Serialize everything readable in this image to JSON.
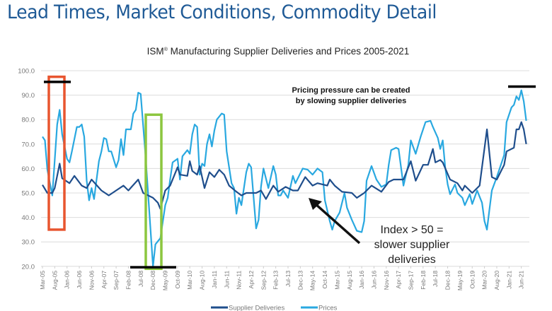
{
  "header": {
    "title": "Lead Times, Market Conditions, Commodity Detail"
  },
  "chart_data": {
    "type": "line",
    "title": "ISM® Manufacturing Supplier Deliveries and Prices 2005-2021",
    "title_main": "ISM",
    "title_sup": "®",
    "title_rest": " Manufacturing Supplier Deliveries and Prices 2005-2021",
    "xlabel": "",
    "ylabel": "",
    "ylim": [
      20,
      100
    ],
    "y_ticks": [
      "100.0",
      "90.0",
      "80.0",
      "70.0",
      "60.0",
      "50.0",
      "40.0",
      "30.0",
      "20.0"
    ],
    "x_tick_labels": [
      "Mar-05",
      "Aug-05",
      "Jan-06",
      "Jun-06",
      "Nov-06",
      "Apr-07",
      "Sep-07",
      "Feb-08",
      "Jul-08",
      "Dec-08",
      "May-09",
      "Oct-09",
      "Mar-10",
      "Aug-10",
      "Jan-11",
      "Jun-11",
      "Nov-11",
      "Apr-12",
      "Sep-12",
      "Feb-13",
      "Jul-13",
      "Dec-13",
      "May-14",
      "Oct-14",
      "Mar-15",
      "Aug-15",
      "Jan-16",
      "Jun-16",
      "Nov-16",
      "Apr-17",
      "Sep-17",
      "Feb-18",
      "Jul-18",
      "Dec-18",
      "May-19",
      "Oct-19",
      "Mar-20",
      "Aug-20",
      "Jan-21",
      "Jun-21"
    ],
    "grid": true,
    "legend_position": "bottom",
    "series": [
      {
        "name": "Supplier Deliveries",
        "color": "#1f4e8c",
        "points": [
          [
            "2005-03",
            53.3
          ],
          [
            "2005-05",
            50
          ],
          [
            "2005-07",
            50
          ],
          [
            "2005-08",
            52
          ],
          [
            "2005-10",
            62
          ],
          [
            "2005-11",
            56
          ],
          [
            "2006-02",
            54
          ],
          [
            "2006-04",
            57
          ],
          [
            "2006-07",
            53
          ],
          [
            "2006-09",
            52
          ],
          [
            "2006-11",
            55.5
          ],
          [
            "2007-03",
            51
          ],
          [
            "2007-06",
            49
          ],
          [
            "2007-09",
            51
          ],
          [
            "2007-12",
            53
          ],
          [
            "2008-02",
            51
          ],
          [
            "2008-06",
            55.5
          ],
          [
            "2008-08",
            50
          ],
          [
            "2008-12",
            48
          ],
          [
            "2009-02",
            46
          ],
          [
            "2009-03",
            43.5
          ],
          [
            "2009-05",
            51
          ],
          [
            "2009-07",
            53
          ],
          [
            "2009-10",
            60.5
          ],
          [
            "2009-11",
            57.5
          ],
          [
            "2010-02",
            57
          ],
          [
            "2010-03",
            63
          ],
          [
            "2010-04",
            59
          ],
          [
            "2010-06",
            57.5
          ],
          [
            "2010-07",
            61
          ],
          [
            "2010-09",
            52
          ],
          [
            "2010-11",
            58.5
          ],
          [
            "2011-01",
            56.5
          ],
          [
            "2011-03",
            59.5
          ],
          [
            "2011-05",
            57.5
          ],
          [
            "2011-07",
            53
          ],
          [
            "2011-10",
            50.5
          ],
          [
            "2011-12",
            49
          ],
          [
            "2012-02",
            50
          ],
          [
            "2012-06",
            50
          ],
          [
            "2012-08",
            51
          ],
          [
            "2012-10",
            47.5
          ],
          [
            "2013-01",
            53
          ],
          [
            "2013-03",
            50.5
          ],
          [
            "2013-06",
            52.5
          ],
          [
            "2013-09",
            51
          ],
          [
            "2013-11",
            51
          ],
          [
            "2014-02",
            56.5
          ],
          [
            "2014-05",
            53
          ],
          [
            "2014-07",
            54
          ],
          [
            "2014-11",
            53
          ],
          [
            "2014-12",
            55.5
          ],
          [
            "2015-02",
            53
          ],
          [
            "2015-05",
            50.5
          ],
          [
            "2015-09",
            50
          ],
          [
            "2015-11",
            48
          ],
          [
            "2016-02",
            50
          ],
          [
            "2016-05",
            53
          ],
          [
            "2016-09",
            50.5
          ],
          [
            "2016-12",
            54.5
          ],
          [
            "2017-02",
            55.5
          ],
          [
            "2017-06",
            55.5
          ],
          [
            "2017-09",
            63
          ],
          [
            "2017-11",
            55
          ],
          [
            "2018-02",
            61.5
          ],
          [
            "2018-04",
            61.5
          ],
          [
            "2018-06",
            68
          ],
          [
            "2018-07",
            62.5
          ],
          [
            "2018-09",
            63.5
          ],
          [
            "2018-10",
            62.5
          ],
          [
            "2019-01",
            55.5
          ],
          [
            "2019-04",
            54
          ],
          [
            "2019-06",
            51
          ],
          [
            "2019-07",
            53
          ],
          [
            "2019-10",
            50
          ],
          [
            "2020-01",
            53
          ],
          [
            "2020-04",
            76
          ],
          [
            "2020-06",
            56.5
          ],
          [
            "2020-08",
            55.5
          ],
          [
            "2020-11",
            61.5
          ],
          [
            "2020-12",
            67
          ],
          [
            "2021-03",
            68.5
          ],
          [
            "2021-04",
            76
          ],
          [
            "2021-05",
            76
          ],
          [
            "2021-06",
            79
          ],
          [
            "2021-07",
            76
          ],
          [
            "2021-08",
            70
          ]
        ]
      },
      {
        "name": "Prices",
        "color": "#29a8e0",
        "points": [
          [
            "2005-03",
            73
          ],
          [
            "2005-04",
            71.5
          ],
          [
            "2005-05",
            59.5
          ],
          [
            "2005-07",
            49
          ],
          [
            "2005-09",
            78
          ],
          [
            "2005-10",
            84
          ],
          [
            "2005-11",
            74
          ],
          [
            "2006-01",
            64
          ],
          [
            "2006-02",
            62.5
          ],
          [
            "2006-03",
            67
          ],
          [
            "2006-05",
            77
          ],
          [
            "2006-06",
            77
          ],
          [
            "2006-07",
            78
          ],
          [
            "2006-08",
            73
          ],
          [
            "2006-09",
            55
          ],
          [
            "2006-10",
            47
          ],
          [
            "2006-11",
            52
          ],
          [
            "2006-12",
            47.5
          ],
          [
            "2007-02",
            63
          ],
          [
            "2007-03",
            67
          ],
          [
            "2007-04",
            72.5
          ],
          [
            "2007-05",
            72
          ],
          [
            "2007-06",
            67
          ],
          [
            "2007-07",
            67
          ],
          [
            "2007-09",
            60.5
          ],
          [
            "2007-10",
            63.5
          ],
          [
            "2007-11",
            72
          ],
          [
            "2007-12",
            65.5
          ],
          [
            "2008-01",
            76
          ],
          [
            "2008-03",
            76
          ],
          [
            "2008-04",
            82.5
          ],
          [
            "2008-05",
            84
          ],
          [
            "2008-06",
            91
          ],
          [
            "2008-07",
            90.5
          ],
          [
            "2008-09",
            65
          ],
          [
            "2008-12",
            20
          ],
          [
            "2009-01",
            29
          ],
          [
            "2009-03",
            31.5
          ],
          [
            "2009-05",
            45
          ],
          [
            "2009-06",
            48
          ],
          [
            "2009-07",
            55.5
          ],
          [
            "2009-08",
            62.5
          ],
          [
            "2009-10",
            64
          ],
          [
            "2009-11",
            55.5
          ],
          [
            "2009-12",
            65
          ],
          [
            "2010-02",
            67.5
          ],
          [
            "2010-03",
            66
          ],
          [
            "2010-04",
            74
          ],
          [
            "2010-05",
            78
          ],
          [
            "2010-06",
            77
          ],
          [
            "2010-07",
            57.5
          ],
          [
            "2010-08",
            62
          ],
          [
            "2010-09",
            61
          ],
          [
            "2010-10",
            70
          ],
          [
            "2010-11",
            74
          ],
          [
            "2010-12",
            69
          ],
          [
            "2011-01",
            75.5
          ],
          [
            "2011-02",
            80
          ],
          [
            "2011-04",
            82.5
          ],
          [
            "2011-05",
            82
          ],
          [
            "2011-06",
            67
          ],
          [
            "2011-08",
            54
          ],
          [
            "2011-09",
            52
          ],
          [
            "2011-10",
            41.5
          ],
          [
            "2011-11",
            48
          ],
          [
            "2011-12",
            45
          ],
          [
            "2012-02",
            58.5
          ],
          [
            "2012-03",
            62
          ],
          [
            "2012-04",
            60.5
          ],
          [
            "2012-06",
            35.5
          ],
          [
            "2012-07",
            39
          ],
          [
            "2012-08",
            52.5
          ],
          [
            "2012-09",
            60
          ],
          [
            "2012-11",
            52
          ],
          [
            "2013-01",
            61
          ],
          [
            "2013-02",
            57.5
          ],
          [
            "2013-03",
            49
          ],
          [
            "2013-04",
            49
          ],
          [
            "2013-05",
            51
          ],
          [
            "2013-07",
            48
          ],
          [
            "2013-09",
            57
          ],
          [
            "2013-10",
            54
          ],
          [
            "2014-01",
            60
          ],
          [
            "2014-03",
            59.5
          ],
          [
            "2014-05",
            57.5
          ],
          [
            "2014-07",
            60
          ],
          [
            "2014-09",
            58.5
          ],
          [
            "2014-10",
            47
          ],
          [
            "2014-12",
            38.5
          ],
          [
            "2015-01",
            35
          ],
          [
            "2015-02",
            38.5
          ],
          [
            "2015-04",
            42
          ],
          [
            "2015-06",
            50
          ],
          [
            "2015-07",
            44
          ],
          [
            "2015-09",
            39
          ],
          [
            "2015-11",
            34.5
          ],
          [
            "2016-01",
            34
          ],
          [
            "2016-02",
            38.5
          ],
          [
            "2016-03",
            55
          ],
          [
            "2016-05",
            61
          ],
          [
            "2016-07",
            55.5
          ],
          [
            "2016-09",
            52.5
          ],
          [
            "2016-11",
            53.5
          ],
          [
            "2016-12",
            61.5
          ],
          [
            "2017-01",
            67.5
          ],
          [
            "2017-03",
            68.5
          ],
          [
            "2017-04",
            68
          ],
          [
            "2017-06",
            53
          ],
          [
            "2017-08",
            61.5
          ],
          [
            "2017-09",
            71.5
          ],
          [
            "2017-11",
            66
          ],
          [
            "2018-01",
            73
          ],
          [
            "2018-03",
            79
          ],
          [
            "2018-05",
            79.5
          ],
          [
            "2018-06",
            77
          ],
          [
            "2018-08",
            72.5
          ],
          [
            "2018-09",
            68
          ],
          [
            "2018-10",
            71.5
          ],
          [
            "2018-11",
            60.5
          ],
          [
            "2018-12",
            53.5
          ],
          [
            "2019-01",
            49.5
          ],
          [
            "2019-03",
            53.5
          ],
          [
            "2019-04",
            50
          ],
          [
            "2019-06",
            48
          ],
          [
            "2019-07",
            45
          ],
          [
            "2019-09",
            49.5
          ],
          [
            "2019-10",
            45.5
          ],
          [
            "2019-12",
            51
          ],
          [
            "2020-02",
            46
          ],
          [
            "2020-03",
            38.5
          ],
          [
            "2020-04",
            35
          ],
          [
            "2020-05",
            43
          ],
          [
            "2020-06",
            51
          ],
          [
            "2020-08",
            56.5
          ],
          [
            "2020-10",
            62.5
          ],
          [
            "2020-11",
            65.5
          ],
          [
            "2020-12",
            79
          ],
          [
            "2021-02",
            85
          ],
          [
            "2021-03",
            86
          ],
          [
            "2021-04",
            89.5
          ],
          [
            "2021-05",
            88
          ],
          [
            "2021-06",
            92
          ],
          [
            "2021-07",
            87.5
          ],
          [
            "2021-08",
            79.5
          ]
        ]
      }
    ],
    "annotations": {
      "pricing_note": [
        "Pricing pressure can be created",
        "by slowing supplier deliveries"
      ],
      "index_note": [
        "Index > 50 =",
        "slower supplier",
        "deliveries"
      ],
      "highlight_colors": {
        "box_2005": "#e8552f",
        "box_2008": "#8cc63f",
        "bars": "#000000"
      }
    }
  }
}
